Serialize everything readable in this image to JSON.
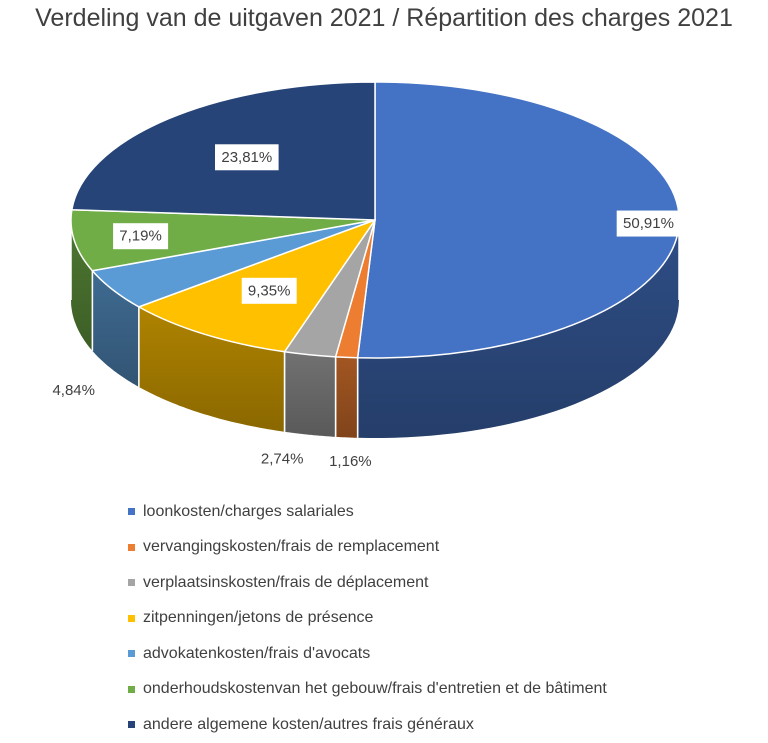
{
  "chart_data": {
    "type": "pie",
    "style": "3d",
    "title": "Verdeling van de uitgaven 2021 / Répartition des charges 2021",
    "legend_position": "bottom",
    "data_label_box": "white",
    "series": [
      {
        "name": "loonkosten/charges salariales",
        "value": 50.91,
        "label": "50,91%",
        "color": "#4472c4"
      },
      {
        "name": "vervangingskosten/frais de remplacement",
        "value": 1.16,
        "label": "1,16%",
        "color": "#ed7d31"
      },
      {
        "name": "verplaatsinskosten/frais de déplacement",
        "value": 2.74,
        "label": "2,74%",
        "color": "#a5a5a5"
      },
      {
        "name": "zitpenningen/jetons de présence",
        "value": 9.35,
        "label": "9,35%",
        "color": "#ffc000"
      },
      {
        "name": "advokatenkosten/frais d'avocats",
        "value": 4.84,
        "label": "4,84%",
        "color": "#5b9bd5"
      },
      {
        "name": "onderhoudskostenvan het gebouw/frais d'entretien et de bâtiment",
        "value": 7.19,
        "label": "7,19%",
        "color": "#70ad47"
      },
      {
        "name": "andere algemene kosten/autres frais généraux",
        "value": 23.81,
        "label": "23,81%",
        "color": "#264478"
      }
    ]
  }
}
